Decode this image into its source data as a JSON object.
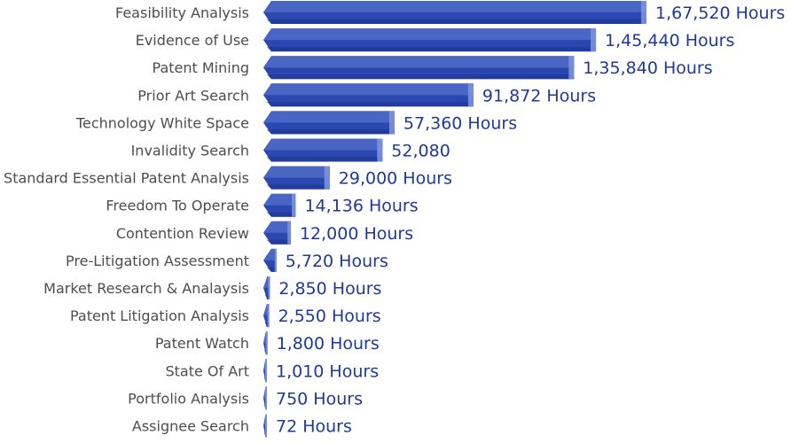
{
  "chart_data": {
    "type": "bar",
    "orientation": "horizontal",
    "title": "",
    "xlabel": "",
    "ylabel": "",
    "xlim": [
      0,
      167520
    ],
    "grid": false,
    "legend": "none",
    "colors": {
      "bar_front": "#2b48b0",
      "bar_top": "#4a66c4",
      "bar_bottom": "#1c3390",
      "bar_cap": "#7f96de",
      "category_text": "#4d4d4d",
      "label_text": "#1e3a96"
    },
    "categories": [
      "Feasibility Analysis",
      "Evidence of Use",
      "Patent Mining",
      "Prior Art Search",
      "Technology White Space",
      "Invalidity Search",
      "Standard Essential Patent Analysis",
      "Freedom To Operate",
      "Contention Review",
      "Pre-Litigation Assessment",
      "Market Research & Analaysis",
      "Patent Litigation Analysis",
      "Patent Watch",
      "State Of Art",
      "Portfolio Analysis",
      "Assignee Search"
    ],
    "values": [
      167520,
      145440,
      135840,
      91872,
      57360,
      52080,
      29000,
      14136,
      12000,
      5720,
      2850,
      2550,
      1800,
      1010,
      750,
      72
    ],
    "data_labels": [
      "1,67,520 Hours",
      "1,45,440 Hours",
      "1,35,840 Hours",
      "91,872 Hours",
      "57,360 Hours",
      "52,080",
      "29,000 Hours",
      "14,136 Hours",
      "12,000 Hours",
      "5,720 Hours",
      "2,850 Hours",
      "2,550 Hours",
      "1,800 Hours",
      "1,010 Hours",
      "750 Hours",
      "72 Hours"
    ]
  }
}
